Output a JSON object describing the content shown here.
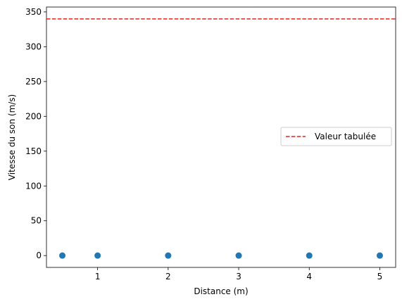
{
  "chart_data": {
    "type": "scatter",
    "xlabel": "Distance (m)",
    "ylabel": "Vitesse du son (m/s)",
    "xlim": [
      0.275,
      5.225
    ],
    "ylim": [
      -17.0,
      357.0
    ],
    "xticks": [
      1,
      2,
      3,
      4,
      5
    ],
    "yticks": [
      0,
      50,
      100,
      150,
      200,
      250,
      300,
      350
    ],
    "grid": false,
    "legend_position": "center-right",
    "series": [
      {
        "type": "scatter",
        "color": "#1f77b4",
        "x": [
          0.5,
          1,
          2,
          3,
          4,
          5
        ],
        "y": [
          0,
          0,
          0,
          0,
          0,
          0
        ]
      }
    ],
    "reference_lines": [
      {
        "name": "Valeur tabulée",
        "orientation": "horizontal",
        "y": 340,
        "style": "dashed",
        "color": "#d62728"
      }
    ]
  }
}
